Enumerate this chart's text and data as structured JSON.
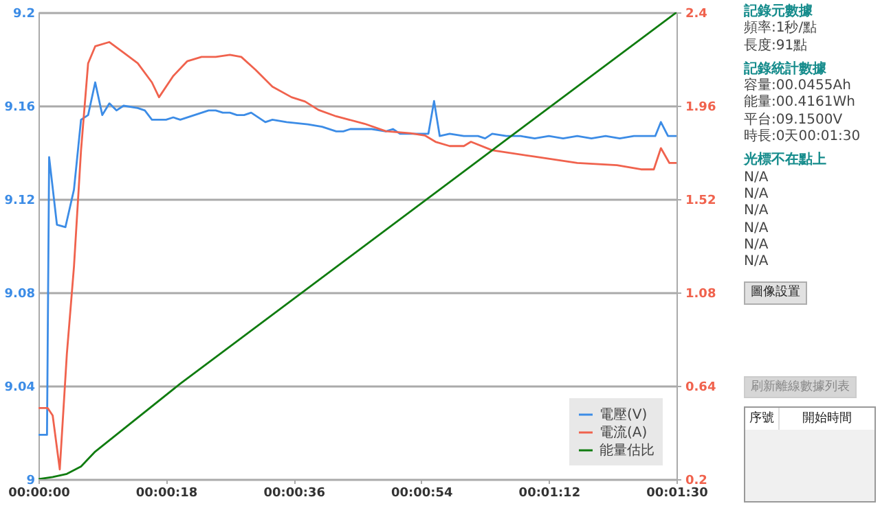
{
  "chart_data": [
    {
      "type": "line",
      "xlim": [
        0,
        90
      ],
      "xticks": [
        {
          "value": 0,
          "label": "00:00:00"
        },
        {
          "value": 18,
          "label": "00:00:18"
        },
        {
          "value": 36,
          "label": "00:00:36"
        },
        {
          "value": 54,
          "label": "00:00:54"
        },
        {
          "value": 72,
          "label": "00:01:12"
        },
        {
          "value": 90,
          "label": "00:01:30"
        }
      ],
      "ylim": [
        9,
        9.2
      ],
      "yticks": [
        9,
        9.04,
        9.08,
        9.12,
        9.16,
        9.2
      ],
      "y2lim": [
        0.2,
        2.4
      ],
      "y2ticks": [
        0.2,
        0.64,
        1.08,
        1.52,
        1.96,
        2.4
      ],
      "grid": "y",
      "legend": "bottom right",
      "series": [
        {
          "name": "電壓(V)",
          "color": "#3c8ce6",
          "x": [
            0,
            1.2,
            1.5,
            2.6,
            3.8,
            5,
            6,
            7,
            8,
            9,
            10,
            11,
            12,
            14,
            15,
            16,
            18,
            19,
            20,
            22,
            24,
            25,
            26,
            27,
            28,
            29,
            30,
            32,
            33,
            35,
            38,
            40,
            42,
            43,
            44,
            47,
            49,
            50,
            51,
            54,
            55,
            55.8,
            56.6,
            58,
            60,
            62,
            63,
            64,
            66,
            68,
            70,
            72,
            74,
            76,
            78,
            80,
            82,
            84,
            86,
            87,
            87.8,
            88.8,
            90
          ],
          "values": [
            9.019,
            9.019,
            9.138,
            9.109,
            9.108,
            9.124,
            9.154,
            9.156,
            9.17,
            9.156,
            9.161,
            9.158,
            9.16,
            9.159,
            9.158,
            9.154,
            9.154,
            9.155,
            9.154,
            9.156,
            9.158,
            9.158,
            9.157,
            9.157,
            9.156,
            9.156,
            9.157,
            9.153,
            9.154,
            9.153,
            9.152,
            9.151,
            9.149,
            9.149,
            9.15,
            9.15,
            9.149,
            9.15,
            9.148,
            9.148,
            9.148,
            9.162,
            9.147,
            9.148,
            9.147,
            9.147,
            9.146,
            9.148,
            9.147,
            9.147,
            9.146,
            9.147,
            9.146,
            9.147,
            9.146,
            9.147,
            9.146,
            9.147,
            9.147,
            9.147,
            9.153,
            9.147,
            9.147
          ]
        },
        {
          "name": "電流(A)",
          "color": "#f0624d",
          "axis": "y2",
          "x": [
            0,
            1.3,
            2,
            3,
            4,
            5,
            6,
            7,
            8,
            10,
            12,
            14,
            16,
            17,
            19,
            21,
            23,
            25,
            27,
            28.6,
            30.6,
            33,
            35.7,
            37.6,
            39.5,
            42,
            46,
            49,
            52.5,
            54.5,
            56,
            58,
            60,
            61,
            64,
            70,
            76,
            81.6,
            85,
            86.8,
            87.8,
            89,
            90
          ],
          "values": [
            0.535,
            0.535,
            0.5,
            0.246,
            0.79,
            1.2,
            1.75,
            2.16,
            2.24,
            2.26,
            2.21,
            2.16,
            2.07,
            2.0,
            2.1,
            2.17,
            2.19,
            2.19,
            2.2,
            2.19,
            2.13,
            2.05,
            2.0,
            1.98,
            1.94,
            1.91,
            1.875,
            1.84,
            1.83,
            1.82,
            1.79,
            1.77,
            1.77,
            1.79,
            1.75,
            1.72,
            1.69,
            1.68,
            1.66,
            1.66,
            1.76,
            1.69,
            1.69
          ]
        },
        {
          "name": "能量估比",
          "color": "#107c10",
          "axis": "y2",
          "x": [
            0,
            2,
            4,
            6,
            8,
            20,
            90
          ],
          "values": [
            0.2,
            0.21,
            0.225,
            0.26,
            0.33,
            0.65,
            2.4
          ]
        }
      ]
    },
    {
      "type": "other",
      "title": "記錄元數據",
      "annotations": [
        "頻率:1秒/點",
        "長度:91點"
      ]
    },
    {
      "type": "other",
      "title": "記錄統計數據",
      "annotations": [
        "容量:00.0455Ah",
        "能量:00.4161Wh",
        "平台:09.1500V",
        "時長:0天00:01:30"
      ]
    },
    {
      "type": "other",
      "title": "光標不在點上",
      "annotations": [
        "N/A",
        "N/A",
        "N/A",
        "N/A",
        "N/A",
        "N/A"
      ]
    },
    {
      "type": "other",
      "annotations": [
        "圖像設置"
      ]
    },
    {
      "type": "other",
      "annotations": [
        "刷新離線數據列表",
        "序號",
        "開始時間"
      ]
    }
  ]
}
